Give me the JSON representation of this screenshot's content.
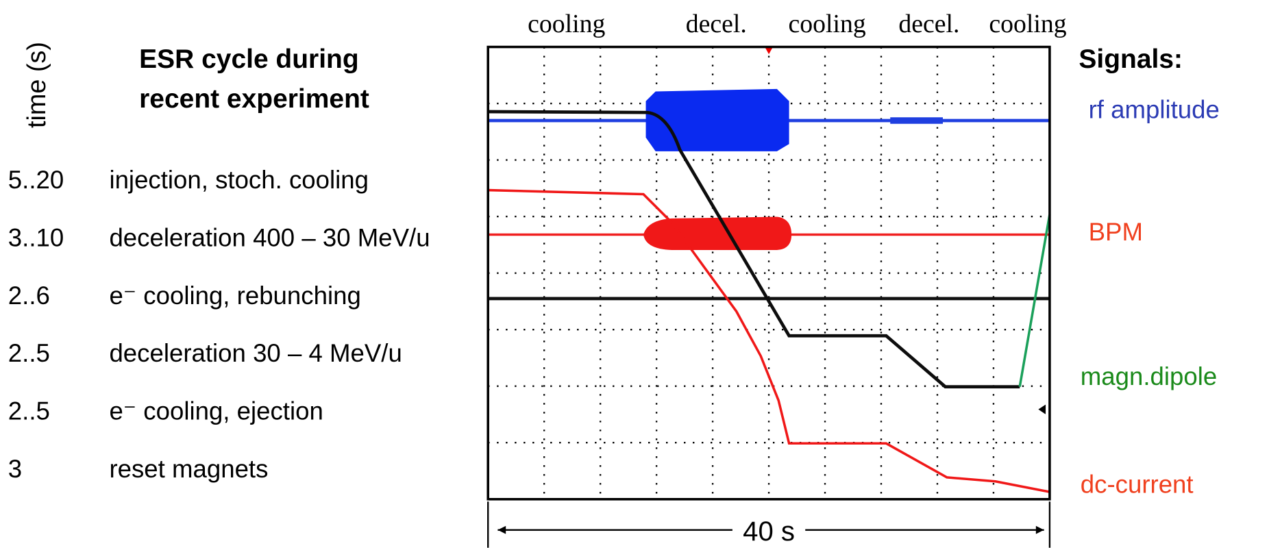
{
  "phase_labels": [
    "cooling",
    "decel.",
    "cooling",
    "decel.",
    "cooling"
  ],
  "time_axis_label": "time (s)",
  "title_lines": [
    "ESR cycle during",
    "recent experiment"
  ],
  "steps": [
    {
      "time": "5..20",
      "description": "injection, stoch. cooling"
    },
    {
      "time": "3..10",
      "description": "deceleration 400 – 30 MeV/u"
    },
    {
      "time": "2..6",
      "description": "e⁻ cooling, rebunching"
    },
    {
      "time": "2..5",
      "description": "deceleration 30 – 4 MeV/u"
    },
    {
      "time": "2..5",
      "description": "e⁻ cooling, ejection"
    },
    {
      "time": "3",
      "description": "reset magnets"
    }
  ],
  "signals": {
    "heading": "Signals:",
    "items": [
      "rf amplitude",
      "BPM",
      "magn.dipole",
      "dc-current"
    ]
  },
  "scale_label": "40 s"
}
